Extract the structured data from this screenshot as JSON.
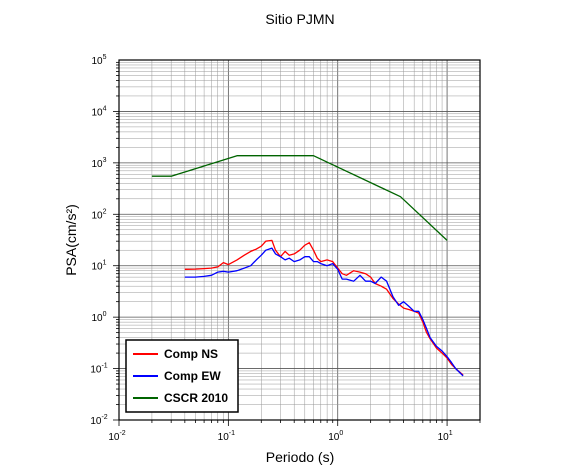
{
  "chart_data": {
    "type": "line",
    "title": "Sitio PJMN",
    "xlabel": "Periodo (s)",
    "ylabel": "PSA(cm/s²)",
    "x_scale": "log",
    "y_scale": "log",
    "xlim": [
      0.01,
      20
    ],
    "ylim": [
      0.01,
      100000
    ],
    "grid": true,
    "legend_position": "bottom-left",
    "x_ticks": [
      0.01,
      0.1,
      1,
      10
    ],
    "x_tick_labels": [
      {
        "base": "10",
        "exp": "-2"
      },
      {
        "base": "10",
        "exp": "-1"
      },
      {
        "base": "10",
        "exp": "0"
      },
      {
        "base": "10",
        "exp": "1"
      }
    ],
    "y_ticks": [
      0.01,
      0.1,
      1,
      10,
      100,
      1000,
      10000,
      100000
    ],
    "y_tick_labels": [
      {
        "base": "10",
        "exp": "-2"
      },
      {
        "base": "10",
        "exp": "-1"
      },
      {
        "base": "10",
        "exp": "0"
      },
      {
        "base": "10",
        "exp": "1"
      },
      {
        "base": "10",
        "exp": "2"
      },
      {
        "base": "10",
        "exp": "3"
      },
      {
        "base": "10",
        "exp": "4"
      },
      {
        "base": "10",
        "exp": "5"
      }
    ],
    "series": [
      {
        "name": "Comp NS",
        "color": "#ff0000",
        "x": [
          0.04,
          0.05,
          0.06,
          0.07,
          0.08,
          0.09,
          0.1,
          0.12,
          0.14,
          0.16,
          0.18,
          0.2,
          0.22,
          0.25,
          0.27,
          0.3,
          0.33,
          0.36,
          0.4,
          0.45,
          0.5,
          0.55,
          0.6,
          0.65,
          0.7,
          0.8,
          0.9,
          1.0,
          1.1,
          1.2,
          1.4,
          1.6,
          1.8,
          2.0,
          2.2,
          2.5,
          2.8,
          3.2,
          3.6,
          4.0,
          4.5,
          5.0,
          5.5,
          6.0,
          6.5,
          7.0,
          8.0,
          9.0,
          10.0,
          11.0,
          12.0,
          14.0
        ],
        "y": [
          8.5,
          8.6,
          8.8,
          9.0,
          9.5,
          11.5,
          10.5,
          13,
          16,
          19,
          21,
          24,
          30,
          31,
          20,
          15,
          19,
          16,
          17,
          20,
          25,
          28,
          20,
          14,
          12,
          13,
          12,
          9,
          7,
          6.5,
          8,
          7.5,
          7,
          6,
          4.5,
          4,
          3.5,
          2.3,
          1.8,
          1.5,
          1.4,
          1.3,
          1.2,
          0.8,
          0.5,
          0.38,
          0.25,
          0.2,
          0.16,
          0.12,
          0.1,
          0.075
        ]
      },
      {
        "name": "Comp EW",
        "color": "#0000ff",
        "x": [
          0.04,
          0.05,
          0.06,
          0.07,
          0.08,
          0.09,
          0.1,
          0.12,
          0.14,
          0.16,
          0.18,
          0.2,
          0.22,
          0.25,
          0.27,
          0.3,
          0.33,
          0.36,
          0.4,
          0.45,
          0.5,
          0.55,
          0.6,
          0.65,
          0.7,
          0.8,
          0.9,
          1.0,
          1.1,
          1.2,
          1.4,
          1.6,
          1.8,
          2.0,
          2.2,
          2.5,
          2.8,
          3.2,
          3.6,
          4.0,
          4.5,
          5.0,
          5.5,
          6.0,
          6.5,
          7.0,
          8.0,
          9.0,
          10.0,
          11.0,
          12.0,
          14.0
        ],
        "y": [
          6.0,
          6.0,
          6.2,
          6.5,
          7.5,
          7.8,
          7.5,
          8,
          9,
          10,
          13,
          16,
          20,
          22,
          17,
          15,
          13,
          14,
          12,
          13,
          15,
          15,
          12,
          12,
          11,
          10,
          11,
          8.5,
          5.5,
          5.5,
          5,
          6.5,
          5,
          5,
          4.5,
          6,
          5,
          2.5,
          1.7,
          2.0,
          1.6,
          1.3,
          1.3,
          0.9,
          0.6,
          0.4,
          0.27,
          0.22,
          0.17,
          0.13,
          0.1,
          0.072
        ]
      },
      {
        "name": "CSCR 2010",
        "color": "#006400",
        "x": [
          0.02,
          0.03,
          0.12,
          0.6,
          3.75,
          10.0
        ],
        "y": [
          550,
          550,
          1380,
          1380,
          220,
          31
        ]
      }
    ]
  }
}
